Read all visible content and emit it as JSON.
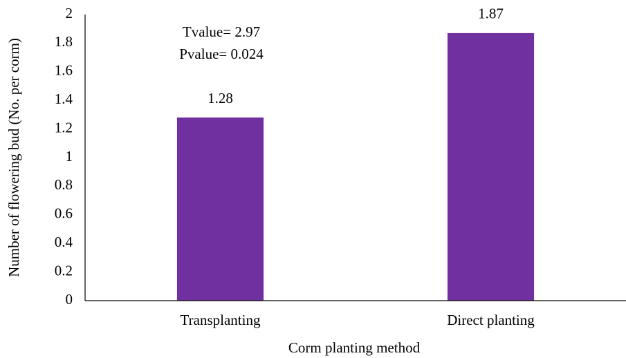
{
  "chart_data": {
    "type": "bar",
    "annotations": [
      "Tvalue= 2.97",
      "Pvalue= 0.024"
    ],
    "x_label": "Corm planting method",
    "y_label": "Number of flowering bud (No. per corm)",
    "categories": [
      "Transplanting",
      "Direct planting"
    ],
    "values": [
      1.28,
      1.87
    ],
    "color": "#7030a0",
    "ylim": [
      0,
      2
    ],
    "yticks": [
      0,
      0.2,
      0.4,
      0.6,
      0.8,
      1,
      1.2,
      1.4,
      1.6,
      1.8,
      2
    ],
    "grid": false
  }
}
